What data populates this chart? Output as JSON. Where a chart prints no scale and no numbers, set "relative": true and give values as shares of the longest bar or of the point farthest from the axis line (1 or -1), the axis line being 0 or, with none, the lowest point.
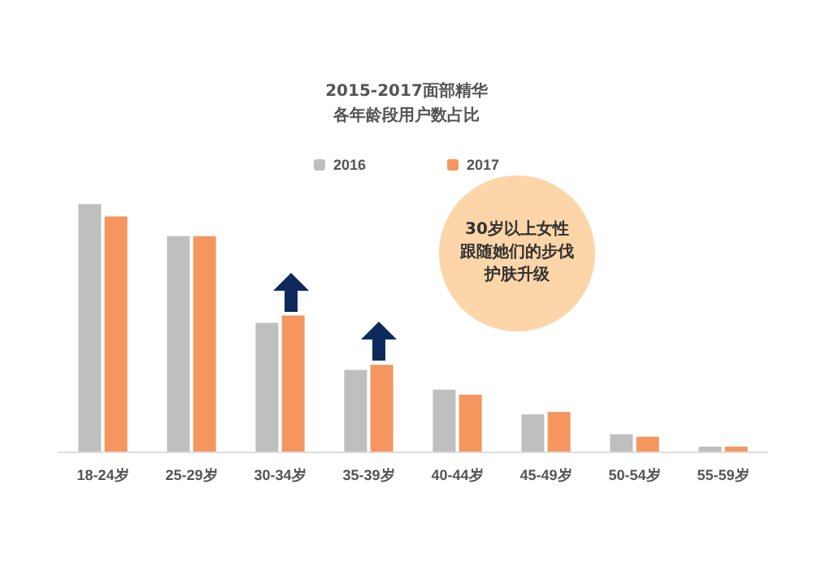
{
  "chart_data": {
    "type": "bar",
    "title": "2015-2017面部精华各年龄段用户数占比",
    "relative": true,
    "legend": "top",
    "categories": [
      "18-24岁",
      "25-29岁",
      "30-34岁",
      "35-39岁",
      "40-44岁",
      "45-49岁",
      "50-54岁",
      "55-59岁"
    ],
    "series": [
      {
        "name": "2016",
        "color": "#bfbfbf",
        "values": [
          1,
          0.87,
          0.52,
          0.33,
          0.25,
          0.15,
          0.07,
          0.02
        ]
      },
      {
        "name": "2017",
        "color": "#f4965e",
        "values": [
          0.95,
          0.87,
          0.55,
          0.35,
          0.23,
          0.16,
          0.06,
          0.02
        ]
      }
    ],
    "annotations": [
      "30岁以上女性跟随她们的步伐护肤升级"
    ]
  }
}
